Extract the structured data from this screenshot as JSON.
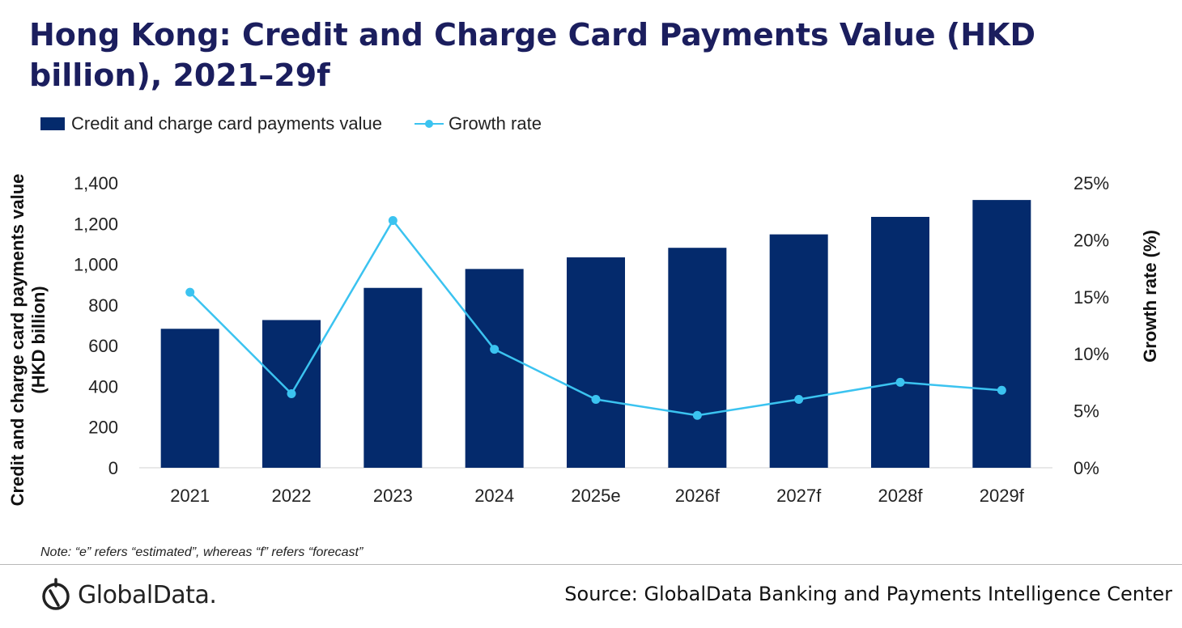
{
  "title": "Hong Kong: Credit and Charge Card Payments Value (HKD billion), 2021–29f",
  "legend": {
    "bar_label": "Credit and charge card payments value",
    "line_label": "Growth rate"
  },
  "note": "Note: “e” refers “estimated”, whereas “f” refers “forecast”",
  "logo_text": "GlobalData.",
  "source": "Source: GlobalData Banking and Payments Intelligence Center",
  "colors": {
    "bar": "#042a6c",
    "line": "#3bc3f0",
    "title": "#1b1e5e"
  },
  "chart_data": {
    "type": "bar",
    "categories": [
      "2021",
      "2022",
      "2023",
      "2024",
      "2025e",
      "2026f",
      "2027f",
      "2028f",
      "2029f"
    ],
    "series": [
      {
        "name": "Credit and charge card payments value",
        "type": "bar",
        "axis": "left",
        "values": [
          683,
          726,
          884,
          977,
          1034,
          1081,
          1147,
          1233,
          1316
        ]
      },
      {
        "name": "Growth rate",
        "type": "line",
        "axis": "right",
        "values": [
          15.4,
          6.5,
          21.7,
          10.4,
          6.0,
          4.6,
          6.0,
          7.5,
          6.8
        ]
      }
    ],
    "ylabel": "Credit and charge card payments value (HKD billion)",
    "ylabel_right": "Growth rate (%)",
    "ylim": [
      0,
      1400
    ],
    "ylim_right": [
      0,
      25
    ],
    "yticks": [
      "0",
      "200",
      "400",
      "600",
      "800",
      "1,000",
      "1,200",
      "1,400"
    ],
    "yticks_right": [
      "0%",
      "5%",
      "10%",
      "15%",
      "20%",
      "25%"
    ],
    "grid": false,
    "legend_position": "top-left"
  }
}
